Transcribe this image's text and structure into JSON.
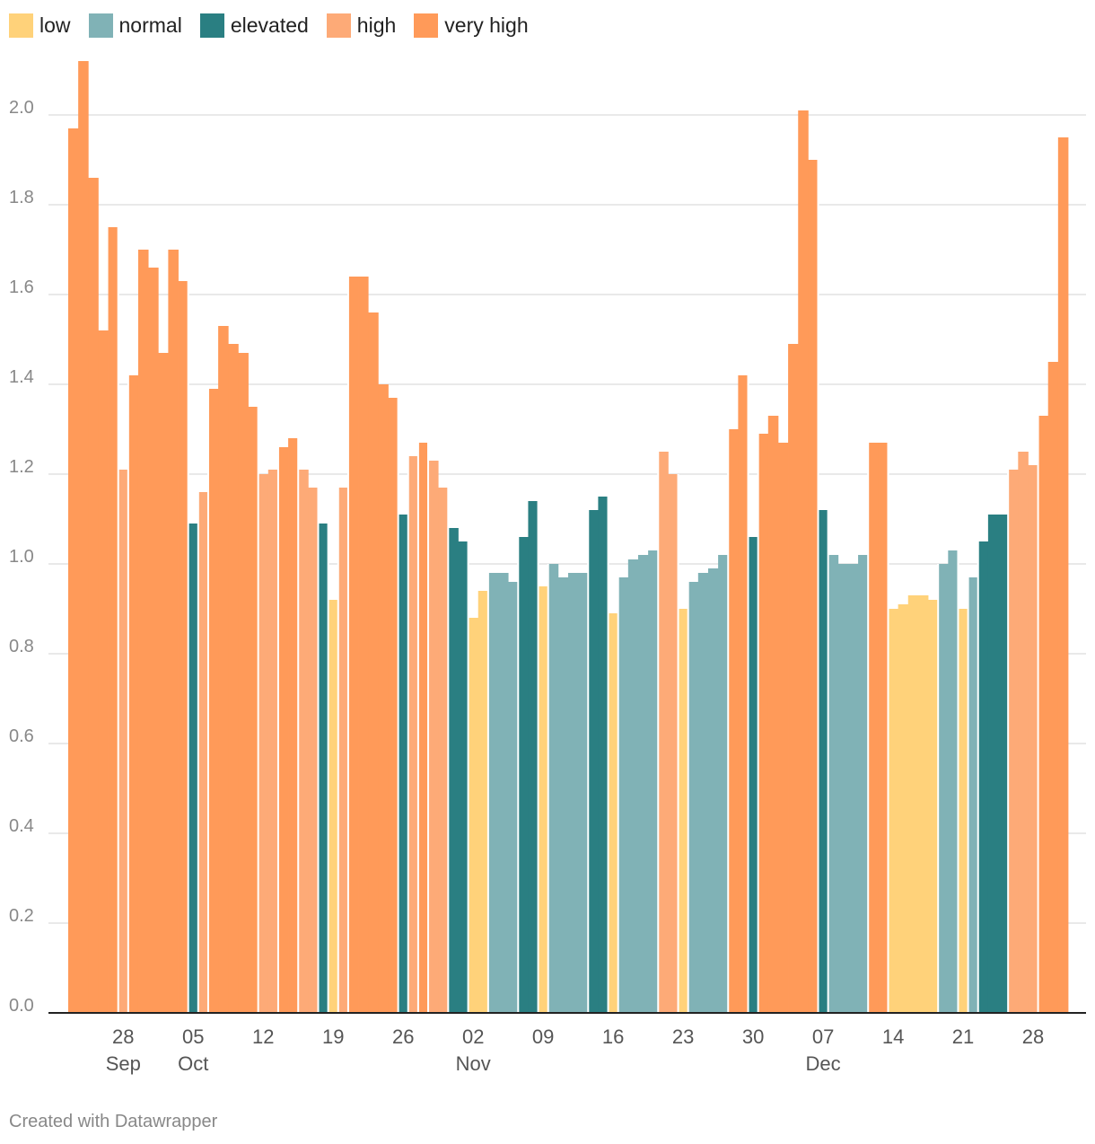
{
  "legend": [
    {
      "label": "low",
      "color": "#ffd27a"
    },
    {
      "label": "normal",
      "color": "#80b2b6"
    },
    {
      "label": "elevated",
      "color": "#2a7f82"
    },
    {
      "label": "high",
      "color": "#fdaa77"
    },
    {
      "label": "very high",
      "color": "#ff9a59"
    }
  ],
  "chart_data": {
    "type": "bar",
    "title": "",
    "xlabel": "",
    "ylabel": "",
    "ylim": [
      0,
      2.12
    ],
    "grid": true,
    "legend_placement": "top-left",
    "y_ticks": [
      "0.0",
      "0.2",
      "0.4",
      "0.6",
      "0.8",
      "1.0",
      "1.2",
      "1.4",
      "1.6",
      "1.8",
      "2.0"
    ],
    "x_ticks": [
      {
        "day": "28",
        "month": "Sep",
        "index": 5
      },
      {
        "day": "05",
        "month": "Oct",
        "index": 12
      },
      {
        "day": "12",
        "month": "",
        "index": 19
      },
      {
        "day": "19",
        "month": "",
        "index": 26
      },
      {
        "day": "26",
        "month": "",
        "index": 33
      },
      {
        "day": "02",
        "month": "Nov",
        "index": 40
      },
      {
        "day": "09",
        "month": "",
        "index": 47
      },
      {
        "day": "16",
        "month": "",
        "index": 54
      },
      {
        "day": "23",
        "month": "",
        "index": 61
      },
      {
        "day": "30",
        "month": "",
        "index": 68
      },
      {
        "day": "07",
        "month": "Dec",
        "index": 75
      },
      {
        "day": "14",
        "month": "",
        "index": 82
      },
      {
        "day": "21",
        "month": "",
        "index": 89
      },
      {
        "day": "28",
        "month": "",
        "index": 96
      }
    ],
    "start_date": "2020-09-23",
    "values": [
      1.97,
      2.12,
      1.86,
      1.52,
      1.75,
      1.21,
      1.42,
      1.7,
      1.66,
      1.47,
      1.7,
      1.63,
      1.09,
      1.16,
      1.39,
      1.53,
      1.49,
      1.47,
      1.35,
      1.2,
      1.21,
      1.26,
      1.28,
      1.21,
      1.17,
      1.09,
      0.92,
      1.17,
      1.64,
      1.64,
      1.56,
      1.4,
      1.37,
      1.11,
      1.24,
      1.27,
      1.23,
      1.17,
      1.08,
      1.05,
      0.88,
      0.94,
      0.98,
      0.98,
      0.96,
      1.06,
      1.14,
      0.95,
      1.0,
      0.97,
      0.98,
      0.98,
      1.12,
      1.15,
      0.89,
      0.97,
      1.01,
      1.02,
      1.03,
      1.25,
      1.2,
      0.9,
      0.96,
      0.98,
      0.99,
      1.02,
      1.3,
      1.42,
      1.06,
      1.29,
      1.33,
      1.27,
      1.49,
      2.01,
      1.9,
      1.12,
      1.02,
      1.0,
      1.0,
      1.02,
      1.27,
      1.27,
      0.9,
      0.91,
      0.93,
      0.93,
      0.92,
      1.0,
      1.03,
      0.9,
      0.97,
      1.05,
      1.11,
      1.11,
      1.21,
      1.25,
      1.22,
      1.33,
      1.45,
      1.95
    ],
    "categories_level": [
      "very high",
      "very high",
      "very high",
      "very high",
      "very high",
      "high",
      "very high",
      "very high",
      "very high",
      "very high",
      "very high",
      "very high",
      "elevated",
      "high",
      "very high",
      "very high",
      "very high",
      "very high",
      "very high",
      "high",
      "high",
      "very high",
      "very high",
      "high",
      "high",
      "elevated",
      "low",
      "high",
      "very high",
      "very high",
      "very high",
      "very high",
      "very high",
      "elevated",
      "high",
      "very high",
      "high",
      "high",
      "elevated",
      "elevated",
      "low",
      "low",
      "normal",
      "normal",
      "normal",
      "elevated",
      "elevated",
      "low",
      "normal",
      "normal",
      "normal",
      "normal",
      "elevated",
      "elevated",
      "low",
      "normal",
      "normal",
      "normal",
      "normal",
      "high",
      "high",
      "low",
      "normal",
      "normal",
      "normal",
      "normal",
      "very high",
      "very high",
      "elevated",
      "very high",
      "very high",
      "very high",
      "very high",
      "very high",
      "very high",
      "elevated",
      "normal",
      "normal",
      "normal",
      "normal",
      "very high",
      "very high",
      "low",
      "low",
      "low",
      "low",
      "low",
      "normal",
      "normal",
      "low",
      "normal",
      "elevated",
      "elevated",
      "elevated",
      "high",
      "high",
      "high",
      "very high",
      "very high",
      "very high"
    ]
  },
  "footer": {
    "text": "Created with Datawrapper"
  }
}
